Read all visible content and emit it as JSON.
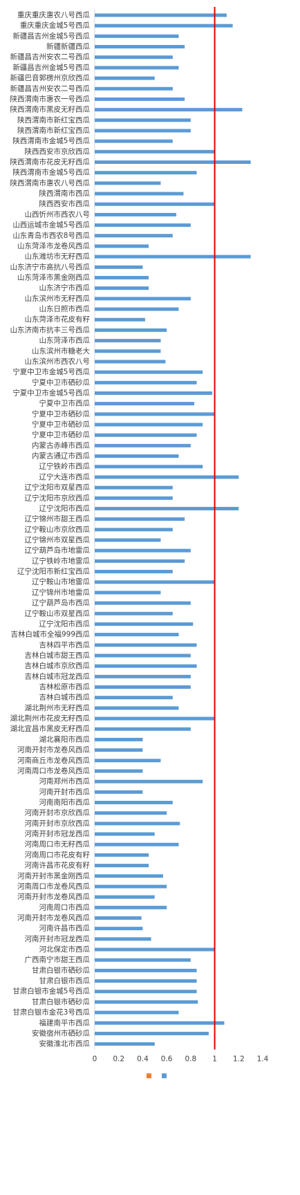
{
  "chart_data": {
    "type": "hbar",
    "categories": [
      "重庆重庆惠农八号西瓜",
      "重庆重庆金城5号西瓜",
      "新疆昌吉州金城5号西瓜",
      "新疆新疆西瓜",
      "新疆昌吉州安农二号西瓜",
      "新疆昌吉州金城5号西瓜",
      "新疆巴音郭楞州京欣西瓜",
      "新疆昌吉州安农二号西瓜",
      "陕西渭南市惠农一号西瓜",
      "陕西渭南市黑皮无籽西瓜",
      "陕西渭南市新红宝西瓜",
      "陕西渭南市新红宝西瓜",
      "陕西渭南市金城5号西瓜",
      "陕西西安市京欣西瓜",
      "陕西渭南市花皮无籽西瓜",
      "陕西渭南市金城5号西瓜",
      "陕西渭南市惠农八号西瓜",
      "陕西渭南市西瓜",
      "陕西西安市西瓜",
      "山西忻州市西农八号",
      "山西运城市金城5号西瓜",
      "山东青岛市西农8号西瓜",
      "山东菏泽市龙卷风西瓜",
      "山东潍坊市无籽西瓜",
      "山东济宁市高抗八号西瓜",
      "山东菏泽市黑金刚西瓜",
      "山东济宁市西瓜",
      "山东滨州市无籽西瓜",
      "山东日照市西瓜",
      "山东菏泽市花皮有籽",
      "山东济南市抗丰三号西瓜",
      "山东菏泽市西瓜",
      "山东滨州市糖老大",
      "山东滨州市西农八号",
      "宁夏中卫市金城5号西瓜",
      "宁夏中卫市硒砂瓜",
      "宁夏中卫市金城5号西瓜",
      "宁夏中卫市西瓜",
      "宁夏中卫市硒砂瓜",
      "宁夏中卫市硒砂瓜",
      "宁夏中卫市硒砂瓜",
      "内蒙古赤峰市西瓜",
      "内蒙古通辽市西瓜",
      "辽宁铁岭市西瓜",
      "辽宁大连市西瓜",
      "辽宁沈阳市双星西瓜",
      "辽宁沈阳市京欣西瓜",
      "辽宁沈阳市西瓜",
      "辽宁锦州市甜王西瓜",
      "辽宁鞍山市京欣西瓜",
      "辽宁锦州市双星西瓜",
      "辽宁葫芦岛市地雷瓜",
      "辽宁铁岭市地雷瓜",
      "辽宁沈阳市新红宝西瓜",
      "辽宁鞍山市地雷瓜",
      "辽宁锦州市地雷瓜",
      "辽宁葫芦岛市西瓜",
      "辽宁鞍山市双星西瓜",
      "辽宁沈阳市西瓜",
      "吉林白城市全福999西瓜",
      "吉林四平市西瓜",
      "吉林白城市甜王西瓜",
      "吉林白城市京欣西瓜",
      "吉林白城市冠龙西瓜",
      "吉林松原市西瓜",
      "吉林白城市西瓜",
      "湖北荆州市无籽西瓜",
      "湖北荆州市花皮无籽西瓜",
      "湖北宜昌市黑皮无籽西瓜",
      "湖北襄阳市西瓜",
      "河南开封市龙卷风西瓜",
      "河南商丘市龙卷风西瓜",
      "河南周口市龙卷风西瓜",
      "河南郑州市西瓜",
      "河南开封市西瓜",
      "河南南阳市西瓜",
      "河南开封市京欣西瓜",
      "河南开封市京欣西瓜",
      "河南开封市冠龙西瓜",
      "河南周口市无籽西瓜",
      "河南周口市花皮有籽",
      "河南许昌市花皮有籽",
      "河南开封市黑金刚西瓜",
      "河南周口市龙卷风西瓜",
      "河南开封市龙卷风西瓜",
      "河南周口市西瓜",
      "河南开封市龙卷风西瓜",
      "河南许昌市西瓜",
      "河南开封市冠龙西瓜",
      "河北保定市西瓜",
      "广西南宁市甜王西瓜",
      "甘肃白银市硒砂瓜",
      "甘肃白银市西瓜",
      "甘肃白银市金城5号西瓜",
      "甘肃白银市硒砂瓜",
      "甘肃白银市金花3号西瓜",
      "福建南平市西瓜",
      "安徽宿州市硒砂瓜",
      "安徽淮北市西瓜"
    ],
    "series": [
      {
        "color": "#ed7d31"
      },
      {
        "color": "#5b9bd5",
        "values": [
          1.1,
          1.15,
          0.7,
          0.75,
          0.65,
          0.7,
          0.5,
          0.65,
          0.75,
          1.23,
          0.8,
          0.8,
          0.65,
          1.0,
          1.3,
          0.85,
          0.55,
          0.74,
          1.0,
          0.68,
          0.8,
          0.65,
          0.45,
          1.3,
          0.4,
          0.45,
          0.45,
          0.8,
          0.7,
          0.42,
          0.6,
          0.55,
          0.55,
          0.59,
          0.9,
          0.85,
          0.98,
          0.83,
          1.0,
          0.9,
          0.85,
          0.8,
          0.7,
          0.9,
          1.2,
          0.65,
          0.65,
          1.2,
          0.75,
          0.65,
          0.55,
          0.8,
          0.75,
          0.65,
          1.0,
          0.55,
          0.8,
          0.65,
          0.82,
          0.7,
          0.85,
          0.8,
          0.85,
          0.8,
          0.8,
          0.65,
          0.7,
          1.0,
          0.8,
          0.4,
          0.4,
          0.55,
          0.4,
          0.9,
          0.4,
          0.65,
          0.6,
          0.71,
          0.5,
          0.7,
          0.45,
          0.45,
          0.57,
          0.6,
          0.5,
          0.6,
          0.39,
          0.4,
          0.47,
          1.0,
          0.8,
          0.85,
          0.85,
          0.85,
          0.86,
          0.7,
          1.08,
          0.95,
          0.5
        ]
      }
    ],
    "reference_line": {
      "value": 1,
      "color": "#e00000"
    },
    "xlim": [
      0,
      1.4
    ],
    "xticks": [
      0,
      0.2,
      0.4,
      0.6,
      0.8,
      1,
      1.2,
      1.4
    ]
  }
}
